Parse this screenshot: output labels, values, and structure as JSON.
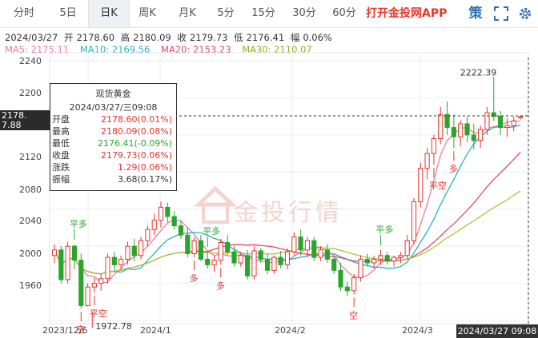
{
  "tabs": [
    {
      "label": "分时",
      "active": false
    },
    {
      "label": "5日",
      "active": false
    },
    {
      "label": "日K",
      "active": true
    },
    {
      "label": "周K",
      "active": false
    },
    {
      "label": "月K",
      "active": false
    },
    {
      "label": "5分",
      "active": false
    },
    {
      "label": "15分",
      "active": false
    },
    {
      "label": "30分",
      "active": false
    },
    {
      "label": "60分",
      "active": false
    }
  ],
  "app_cta": "打开金投网APP",
  "toolbar_icons": [
    "strategy-icon",
    "fullscreen-icon",
    "settings-icon"
  ],
  "strategy_label": "策",
  "info": {
    "date": "2024/03/27",
    "open_label": "开",
    "open": "2178.60",
    "high_label": "高",
    "high": "2180.09",
    "close_label": "收",
    "close": "2179.73",
    "low_label": "低",
    "low": "2176.41",
    "amp_label": "幅",
    "amp": "0.06%"
  },
  "ma": {
    "ma5": "MA5: 2175.11",
    "ma10": "MA10: 2169.56",
    "ma20": "MA20: 2153.23",
    "ma30": "MA30: 2110.07"
  },
  "colors": {
    "up": "#e8342a",
    "down": "#2aa52a",
    "ma5": "#e87f9e",
    "ma10": "#2ab1c8",
    "ma20": "#e04a6a",
    "ma30": "#a8c43a"
  },
  "price_tag": [
    "2178.",
    "7.88"
  ],
  "tooltip": {
    "title": "现货黄金",
    "date": "2024/03/27/三09:08",
    "rows": [
      {
        "k": "开盘",
        "v": "2178.60(0.01%)",
        "c": "up"
      },
      {
        "k": "最高",
        "v": "2180.09(0.08%)",
        "c": "up"
      },
      {
        "k": "最低",
        "v": "2176.41(-0.09%)",
        "c": "down"
      },
      {
        "k": "收盘",
        "v": "2179.73(0.06%)",
        "c": "up"
      },
      {
        "k": "涨跌",
        "v": "1.29(0.06%)",
        "c": "up"
      },
      {
        "k": "振幅",
        "v": "3.68(0.17%)",
        "c": "plain"
      }
    ]
  },
  "watermark": "金投行情",
  "chart_data": {
    "type": "candlestick",
    "y_ticks": [
      "2240",
      "2200",
      "2160",
      "2120",
      "2080",
      "2040",
      "2000",
      "1960"
    ],
    "ylim": [
      1958,
      2248
    ],
    "x_ticks": [
      "2023/12/6",
      "2024/1",
      "2024/2",
      "2024/3"
    ],
    "current_date_label": "2024/03/27 09:08",
    "annotations": {
      "max": "2222.39",
      "min": "1972.78"
    },
    "signals": [
      {
        "label": "平多",
        "arrow": "down"
      },
      {
        "label": "空",
        "arrow": "up"
      },
      {
        "label": "平空",
        "arrow": "up"
      },
      {
        "label": "多",
        "arrow": "up"
      },
      {
        "label": "平多",
        "arrow": "down"
      },
      {
        "label": "多",
        "arrow": "up"
      },
      {
        "label": "平多",
        "arrow": "down"
      },
      {
        "label": "空",
        "arrow": "up"
      },
      {
        "label": "多",
        "arrow": "up"
      },
      {
        "label": "平空",
        "arrow": "up"
      }
    ],
    "candles": [
      [
        2030,
        2042,
        2022,
        2036
      ],
      [
        2036,
        2040,
        2000,
        2004
      ],
      [
        2004,
        2045,
        2000,
        2040
      ],
      [
        2040,
        2042,
        2015,
        2025
      ],
      [
        2025,
        2032,
        1972.78,
        1976
      ],
      [
        1976,
        2000,
        1975,
        1996
      ],
      [
        1996,
        2006,
        1990,
        2000
      ],
      [
        2000,
        2010,
        1992,
        2005
      ],
      [
        2005,
        2032,
        2000,
        2028
      ],
      [
        2028,
        2034,
        2012,
        2020
      ],
      [
        2020,
        2030,
        2015,
        2026
      ],
      [
        2026,
        2045,
        2020,
        2040
      ],
      [
        2040,
        2048,
        2024,
        2030
      ],
      [
        2030,
        2050,
        2026,
        2046
      ],
      [
        2046,
        2062,
        2040,
        2058
      ],
      [
        2058,
        2075,
        2052,
        2068
      ],
      [
        2068,
        2088,
        2060,
        2082
      ],
      [
        2082,
        2087,
        2066,
        2072
      ],
      [
        2072,
        2078,
        2058,
        2062
      ],
      [
        2062,
        2068,
        2048,
        2052
      ],
      [
        2052,
        2060,
        2028,
        2032
      ],
      [
        2032,
        2050,
        2028,
        2046
      ],
      [
        2046,
        2052,
        2024,
        2026
      ],
      [
        2026,
        2034,
        2016,
        2020
      ],
      [
        2020,
        2030,
        2012,
        2025
      ],
      [
        2025,
        2048,
        2020,
        2044
      ],
      [
        2044,
        2052,
        2030,
        2034
      ],
      [
        2034,
        2040,
        2018,
        2022
      ],
      [
        2022,
        2034,
        2018,
        2030
      ],
      [
        2030,
        2036,
        2004,
        2008
      ],
      [
        2008,
        2040,
        2004,
        2035
      ],
      [
        2035,
        2038,
        2022,
        2026
      ],
      [
        2026,
        2032,
        2010,
        2014
      ],
      [
        2014,
        2030,
        2010,
        2028
      ],
      [
        2028,
        2035,
        2016,
        2020
      ],
      [
        2020,
        2038,
        2015,
        2034
      ],
      [
        2034,
        2055,
        2030,
        2050
      ],
      [
        2050,
        2058,
        2030,
        2036
      ],
      [
        2036,
        2050,
        2028,
        2046
      ],
      [
        2046,
        2050,
        2024,
        2028
      ],
      [
        2028,
        2040,
        2024,
        2036
      ],
      [
        2036,
        2042,
        2022,
        2026
      ],
      [
        2026,
        2030,
        2010,
        2014
      ],
      [
        2014,
        2022,
        1992,
        1996
      ],
      [
        1996,
        2002,
        1986,
        1992
      ],
      [
        1992,
        2010,
        1988,
        2006
      ],
      [
        2006,
        2030,
        2002,
        2026
      ],
      [
        2026,
        2032,
        2018,
        2022
      ],
      [
        2022,
        2030,
        2016,
        2026
      ],
      [
        2026,
        2036,
        2020,
        2030
      ],
      [
        2030,
        2034,
        2020,
        2024
      ],
      [
        2024,
        2030,
        2018,
        2028
      ],
      [
        2028,
        2034,
        2022,
        2030
      ],
      [
        2030,
        2052,
        2026,
        2046
      ],
      [
        2046,
        2092,
        2042,
        2088
      ],
      [
        2088,
        2130,
        2082,
        2124
      ],
      [
        2124,
        2146,
        2112,
        2140
      ],
      [
        2140,
        2160,
        2128,
        2156
      ],
      [
        2156,
        2190,
        2150,
        2182
      ],
      [
        2182,
        2196,
        2160,
        2168
      ],
      [
        2168,
        2182,
        2146,
        2158
      ],
      [
        2158,
        2176,
        2148,
        2172
      ],
      [
        2172,
        2180,
        2152,
        2160
      ],
      [
        2160,
        2172,
        2144,
        2154
      ],
      [
        2154,
        2170,
        2146,
        2166
      ],
      [
        2166,
        2190,
        2160,
        2184
      ],
      [
        2184,
        2222.39,
        2175,
        2180
      ],
      [
        2180,
        2186,
        2160,
        2168
      ],
      [
        2168,
        2178,
        2158,
        2170
      ],
      [
        2170,
        2180,
        2164,
        2175
      ],
      [
        2178.6,
        2180.09,
        2176.41,
        2179.73
      ]
    ]
  }
}
